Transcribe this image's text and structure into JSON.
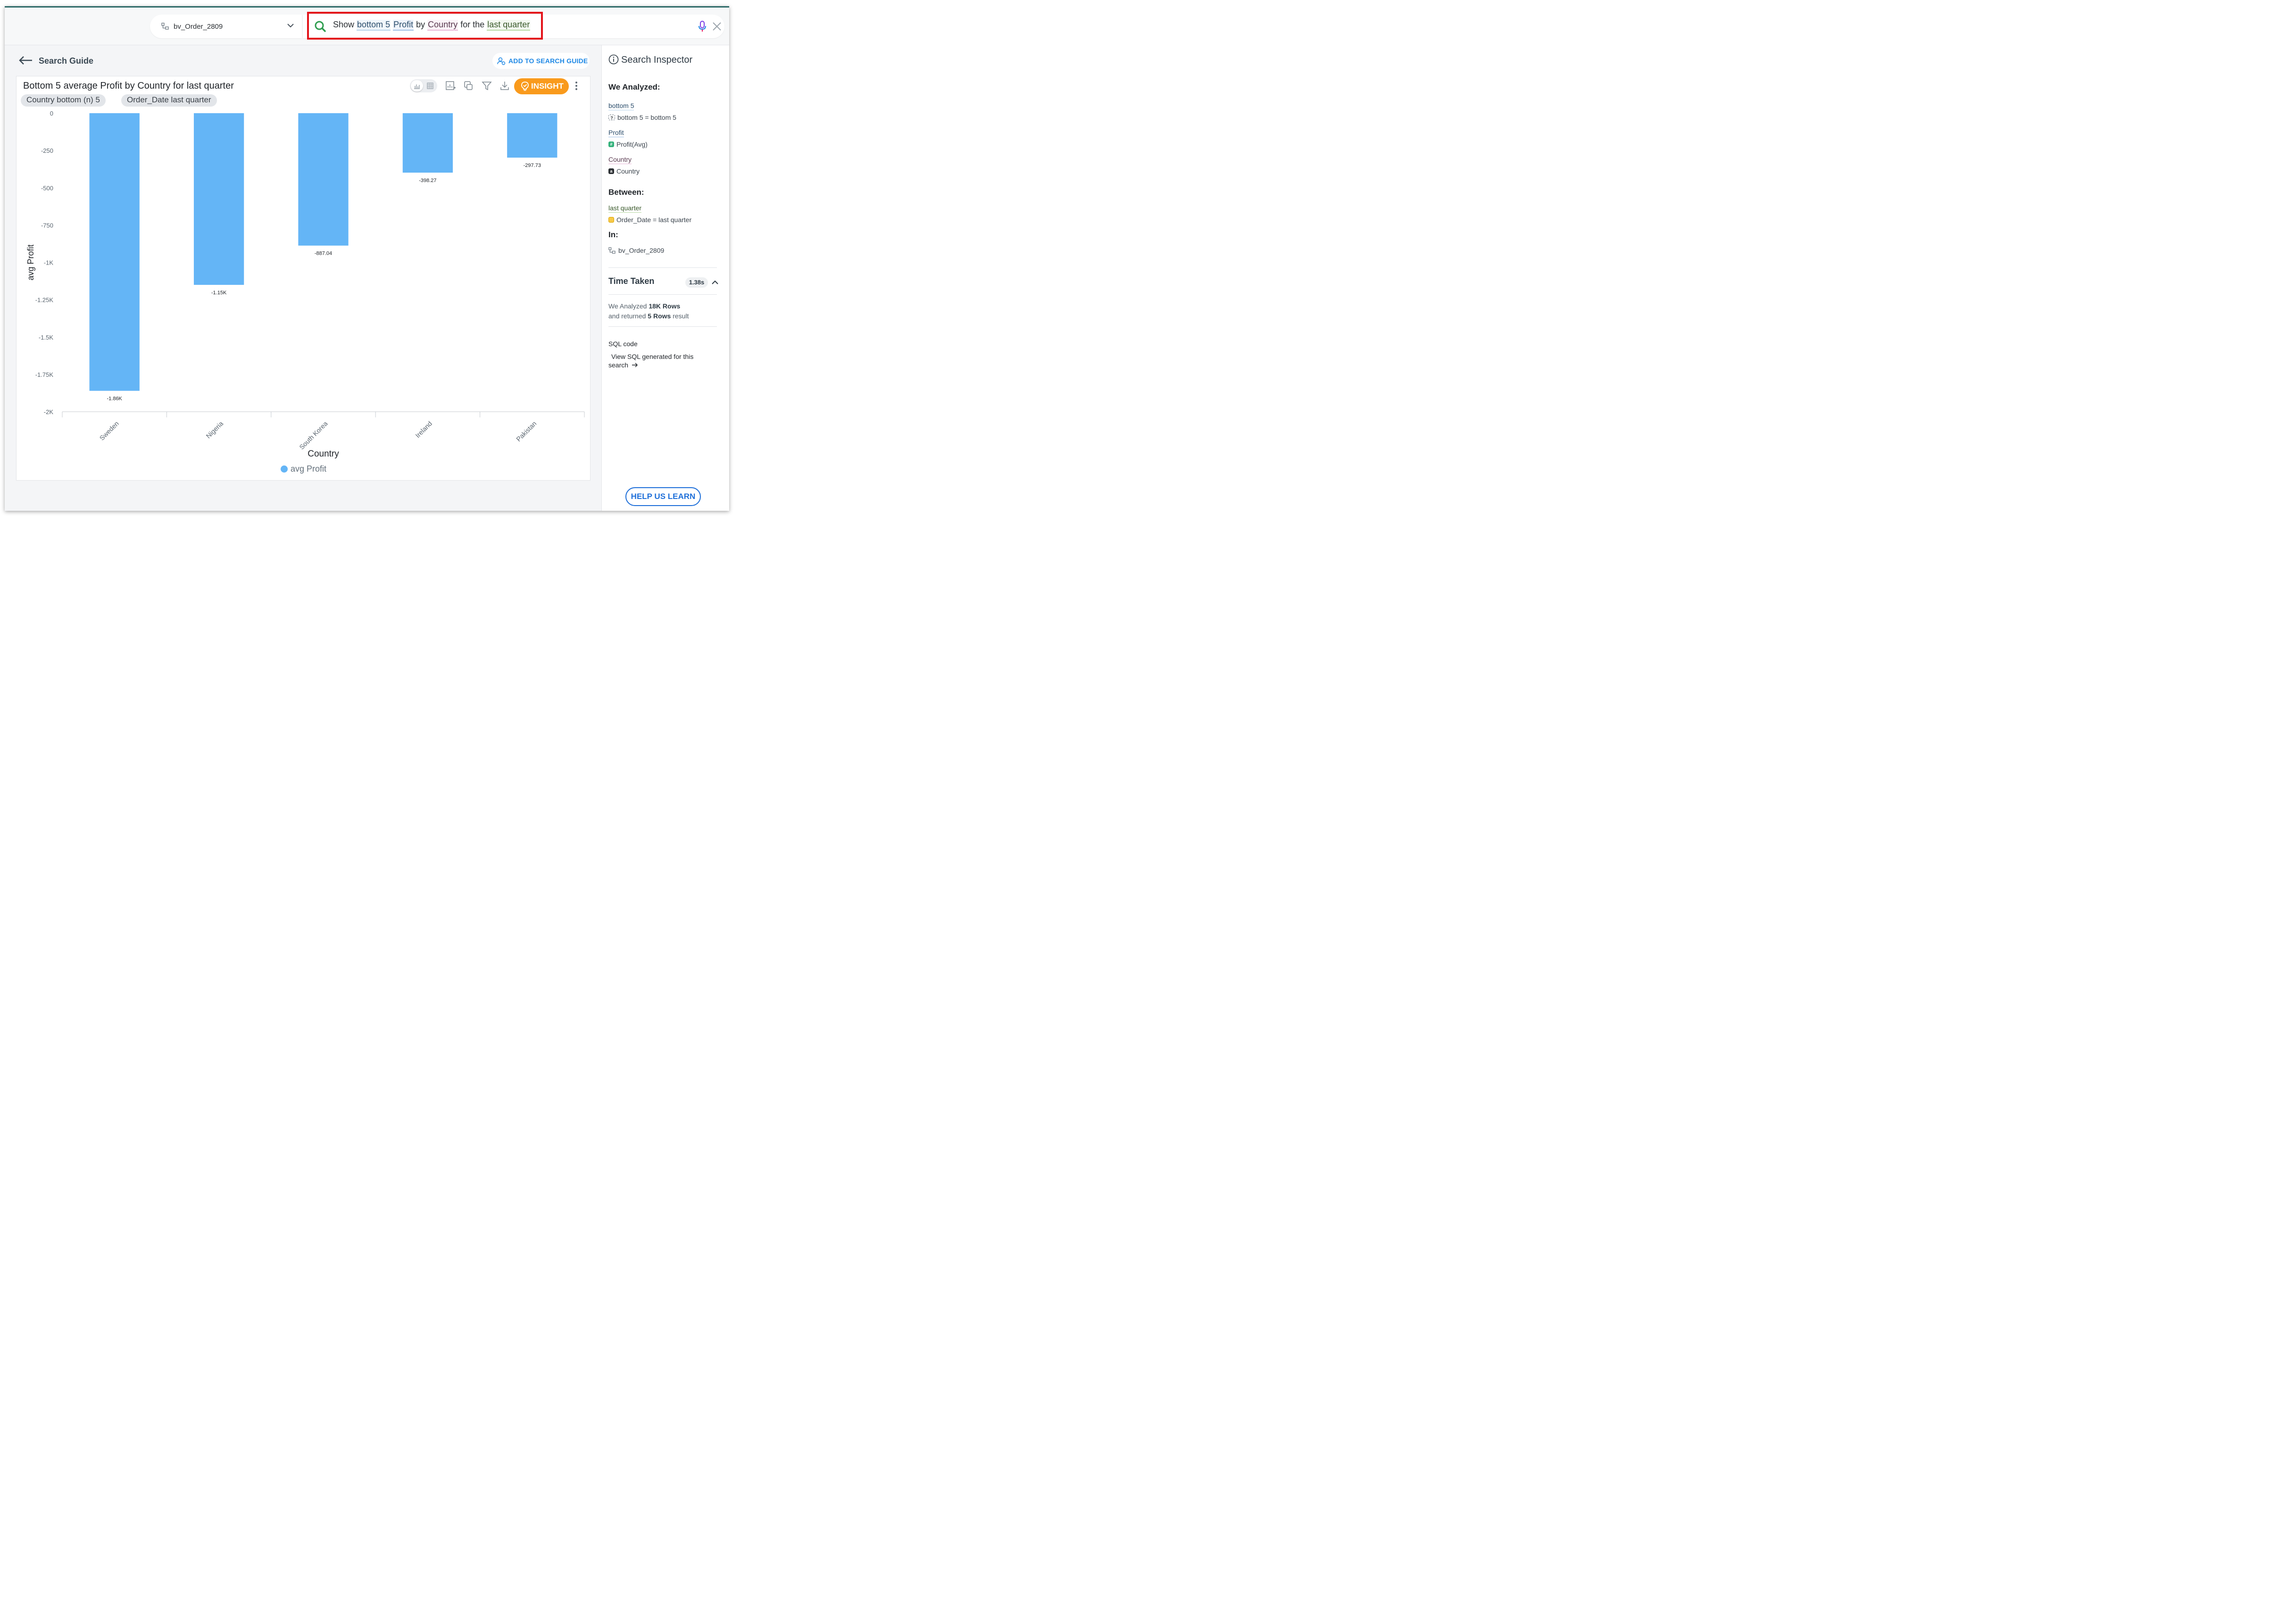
{
  "topbar": {
    "datasource": "bv_Order_2809",
    "query_tokens": [
      {
        "text": "Show",
        "kind": "plain"
      },
      {
        "text": "bottom 5",
        "kind": "bottom"
      },
      {
        "text": "Profit",
        "kind": "profit"
      },
      {
        "text": "by",
        "kind": "plain"
      },
      {
        "text": "Country",
        "kind": "country"
      },
      {
        "text": "for the",
        "kind": "plain"
      },
      {
        "text": "last quarter",
        "kind": "last"
      }
    ]
  },
  "main": {
    "back_label": "Search Guide",
    "add_guide_label": "ADD TO SEARCH GUIDE",
    "chart_title": "Bottom 5 average Profit by Country for last quarter",
    "chips": [
      "Country bottom (n) 5",
      "Order_Date last quarter"
    ],
    "insight_label": "INSIGHT",
    "legend_label": "avg Profit"
  },
  "chart_data": {
    "type": "bar",
    "categories": [
      "Sweden",
      "Nigeria",
      "South Korea",
      "Ireland",
      "Pakistan"
    ],
    "series": [
      {
        "name": "avg Profit",
        "values": [
          -1860,
          -1150,
          -887.04,
          -398.27,
          -297.73
        ]
      }
    ],
    "data_labels": [
      "-1.86K",
      "-1.15K",
      "-887.04",
      "-398.27",
      "-297.73"
    ],
    "xlabel": "Country",
    "ylabel": "avg Profit",
    "ylim": [
      -2000,
      0
    ],
    "yticks": [
      0,
      -250,
      -500,
      -750,
      -1000,
      -1250,
      -1500,
      -1750,
      -2000
    ],
    "ytick_labels": [
      "0",
      "-250",
      "-500",
      "-750",
      "-1K",
      "-1.25K",
      "-1.5K",
      "-1.75K",
      "-2K"
    ],
    "bar_color": "#64b5f6",
    "grid": false,
    "legend_position": "bottom"
  },
  "inspector": {
    "title": "Search Inspector",
    "we_analyzed": "We Analyzed:",
    "items": [
      {
        "token": "bottom 5",
        "detail": "bottom 5 = bottom 5",
        "badge": "?",
        "badge_color": "#ffffff"
      },
      {
        "token": "Profit",
        "detail": "Profit(Avg)",
        "badge": "#",
        "badge_color": "#34b27b"
      },
      {
        "token": "Country",
        "detail": "Country",
        "badge": "a",
        "badge_color": "#2b2f33"
      }
    ],
    "between_label": "Between:",
    "between_token": "last quarter",
    "between_detail": "Order_Date = last quarter",
    "in_label": "In:",
    "in_detail": "bv_Order_2809",
    "time_label": "Time Taken",
    "time_value": "1.38s",
    "analyzed_prefix": "We Analyzed",
    "analyzed_rows": "18K Rows",
    "returned_prefix": "and returned",
    "returned_rows": "5 Rows",
    "returned_suffix": "result",
    "sql_label": "SQL code",
    "sql_link": "View SQL generated for this search",
    "help_label": "HELP US LEARN"
  }
}
